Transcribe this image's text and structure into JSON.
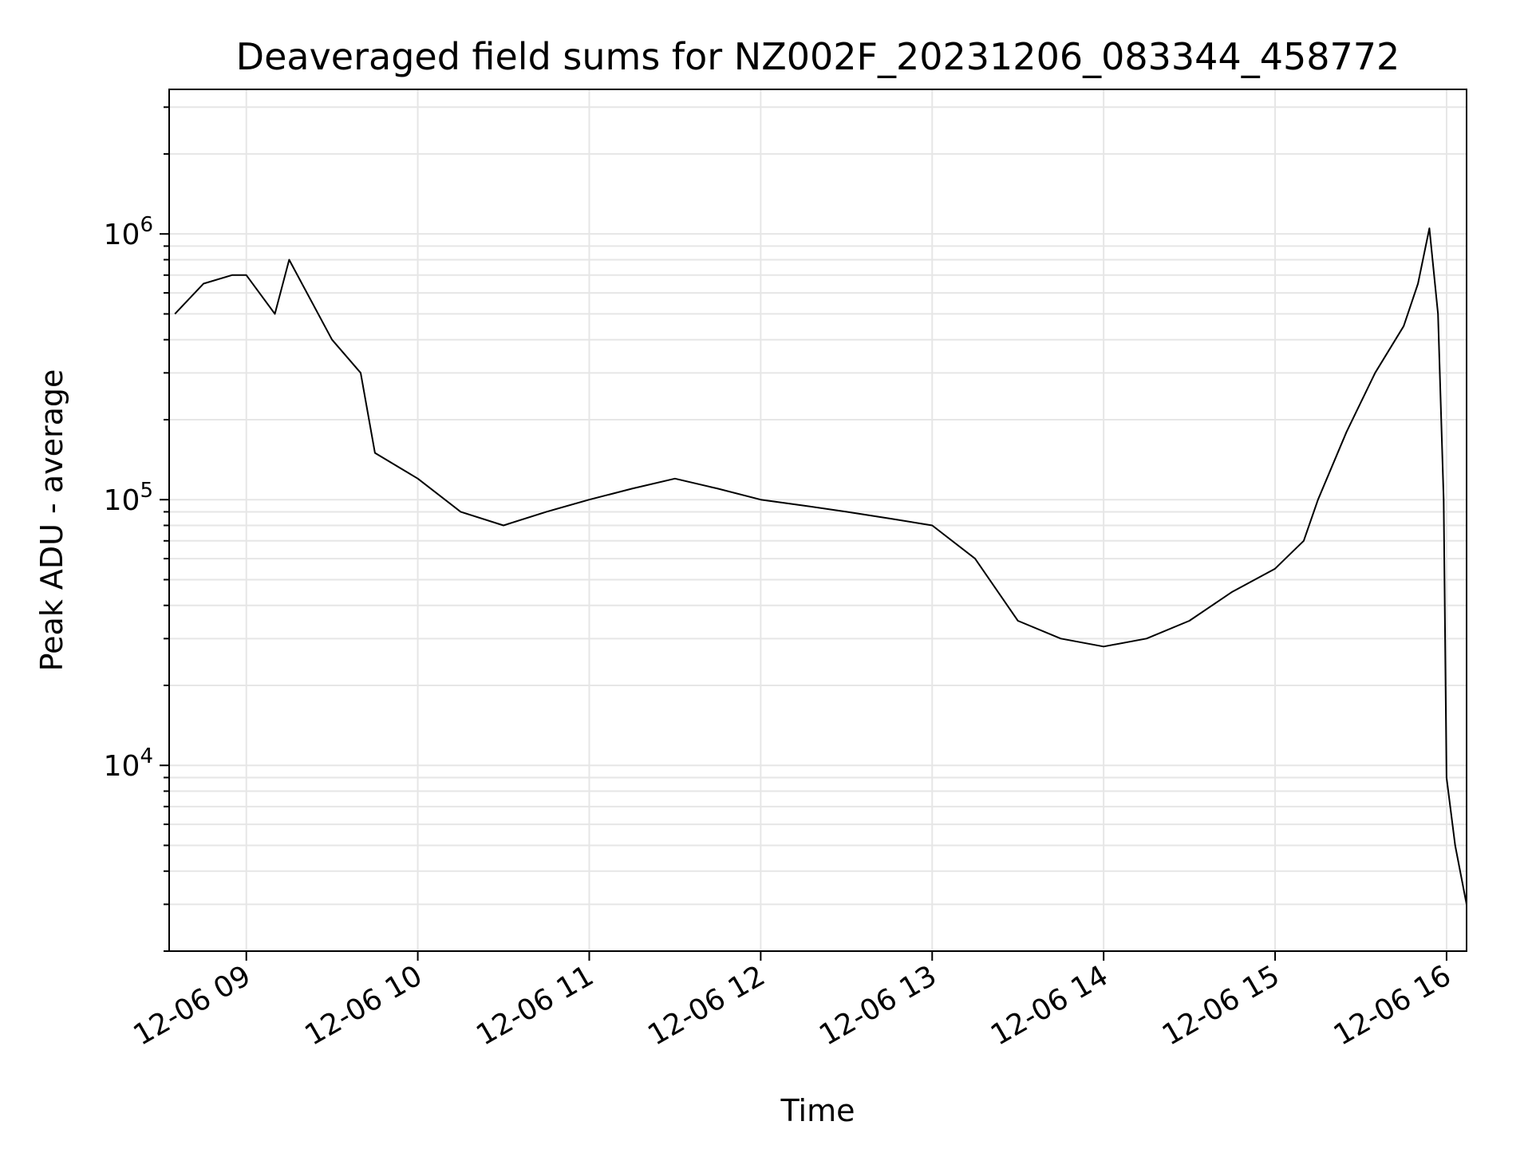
{
  "chart_data": {
    "type": "line",
    "title": "Deaveraged field sums for NZ002F_20231206_083344_458772",
    "xlabel": "Time",
    "ylabel": "Peak ADU - average",
    "yscale": "log",
    "xlim": [
      "12-06 08:33",
      "12-06 16:07"
    ],
    "ylim": [
      2000,
      3500000
    ],
    "grid": true,
    "line_color": "#000000",
    "x_ticks": [
      "12-06 09",
      "12-06 10",
      "12-06 11",
      "12-06 12",
      "12-06 13",
      "12-06 14",
      "12-06 15",
      "12-06 16"
    ],
    "y_ticks": [
      {
        "base": "10",
        "exp": "4",
        "value": 10000
      },
      {
        "base": "10",
        "exp": "5",
        "value": 100000
      },
      {
        "base": "10",
        "exp": "6",
        "value": 1000000
      }
    ],
    "series": [
      {
        "points": [
          [
            "12-06 08:35",
            500000
          ],
          [
            "12-06 08:45",
            650000
          ],
          [
            "12-06 08:55",
            700000
          ],
          [
            "12-06 09:00",
            700000
          ],
          [
            "12-06 09:10",
            500000
          ],
          [
            "12-06 09:15",
            800000
          ],
          [
            "12-06 09:30",
            400000
          ],
          [
            "12-06 09:40",
            300000
          ],
          [
            "12-06 09:45",
            150000
          ],
          [
            "12-06 10:00",
            120000
          ],
          [
            "12-06 10:15",
            90000
          ],
          [
            "12-06 10:30",
            80000
          ],
          [
            "12-06 10:45",
            90000
          ],
          [
            "12-06 11:00",
            100000
          ],
          [
            "12-06 11:15",
            110000
          ],
          [
            "12-06 11:30",
            120000
          ],
          [
            "12-06 11:45",
            110000
          ],
          [
            "12-06 12:00",
            100000
          ],
          [
            "12-06 12:15",
            95000
          ],
          [
            "12-06 12:30",
            90000
          ],
          [
            "12-06 12:45",
            85000
          ],
          [
            "12-06 13:00",
            80000
          ],
          [
            "12-06 13:15",
            60000
          ],
          [
            "12-06 13:30",
            35000
          ],
          [
            "12-06 13:45",
            30000
          ],
          [
            "12-06 14:00",
            28000
          ],
          [
            "12-06 14:15",
            30000
          ],
          [
            "12-06 14:30",
            35000
          ],
          [
            "12-06 14:45",
            45000
          ],
          [
            "12-06 15:00",
            55000
          ],
          [
            "12-06 15:10",
            70000
          ],
          [
            "12-06 15:15",
            100000
          ],
          [
            "12-06 15:25",
            180000
          ],
          [
            "12-06 15:35",
            300000
          ],
          [
            "12-06 15:45",
            450000
          ],
          [
            "12-06 15:50",
            650000
          ],
          [
            "12-06 15:54",
            1050000
          ],
          [
            "12-06 15:57",
            500000
          ],
          [
            "12-06 15:59",
            100000
          ],
          [
            "12-06 16:00",
            9000
          ],
          [
            "12-06 16:03",
            5000
          ],
          [
            "12-06 16:07",
            3000
          ]
        ]
      }
    ]
  }
}
